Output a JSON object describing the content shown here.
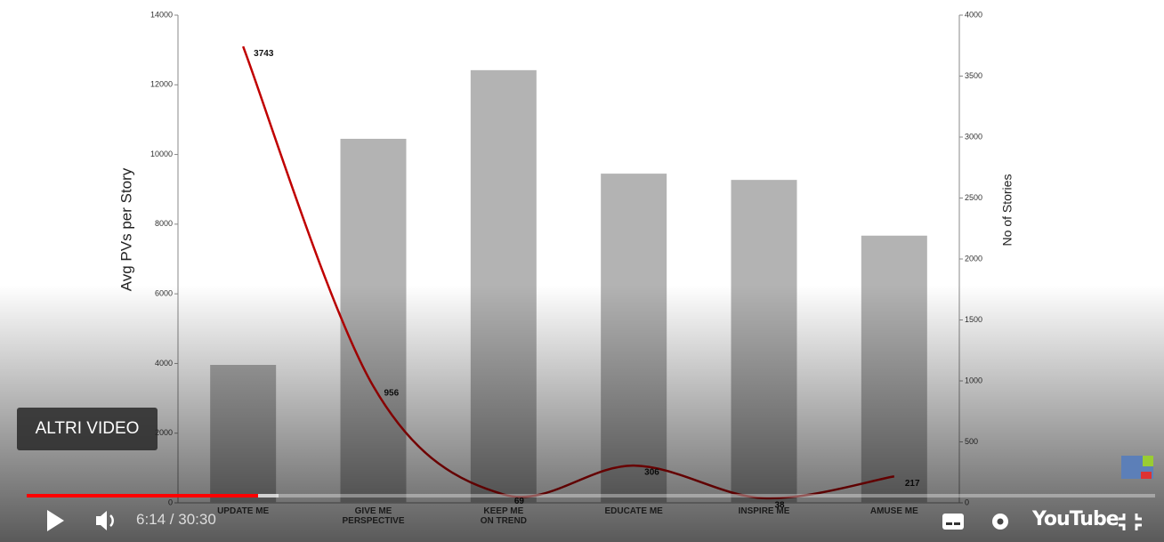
{
  "chart_data": {
    "type": "bar",
    "ylabel": "Avg PVs per Story",
    "y2label": "No of Stories",
    "categories": [
      "UPDATE ME",
      "GIVE ME\nPERSPECTIVE",
      "KEEP ME\nON TREND",
      "EDUCATE ME",
      "INSPIRE ME",
      "AMUSE ME"
    ],
    "series": [
      {
        "type": "bar",
        "color": "#b3b3b3",
        "values": [
          3960,
          10450,
          12420,
          9450,
          9270,
          7670
        ]
      },
      {
        "type": "line",
        "color": "#c00000",
        "axis": "y2",
        "values": [
          3743,
          956,
          69,
          306,
          38,
          217
        ]
      }
    ],
    "ylim": [
      0,
      14000
    ],
    "yticks": [
      0,
      2000,
      4000,
      6000,
      8000,
      10000,
      12000,
      14000
    ],
    "y2lim": [
      0,
      4000
    ],
    "y2ticks": [
      0,
      500,
      1000,
      1500,
      2000,
      2500,
      3000,
      3500,
      4000
    ]
  },
  "player": {
    "more_videos": "ALTRI VIDEO",
    "time": "6:14 / 30:30",
    "brand": "YouTube"
  }
}
